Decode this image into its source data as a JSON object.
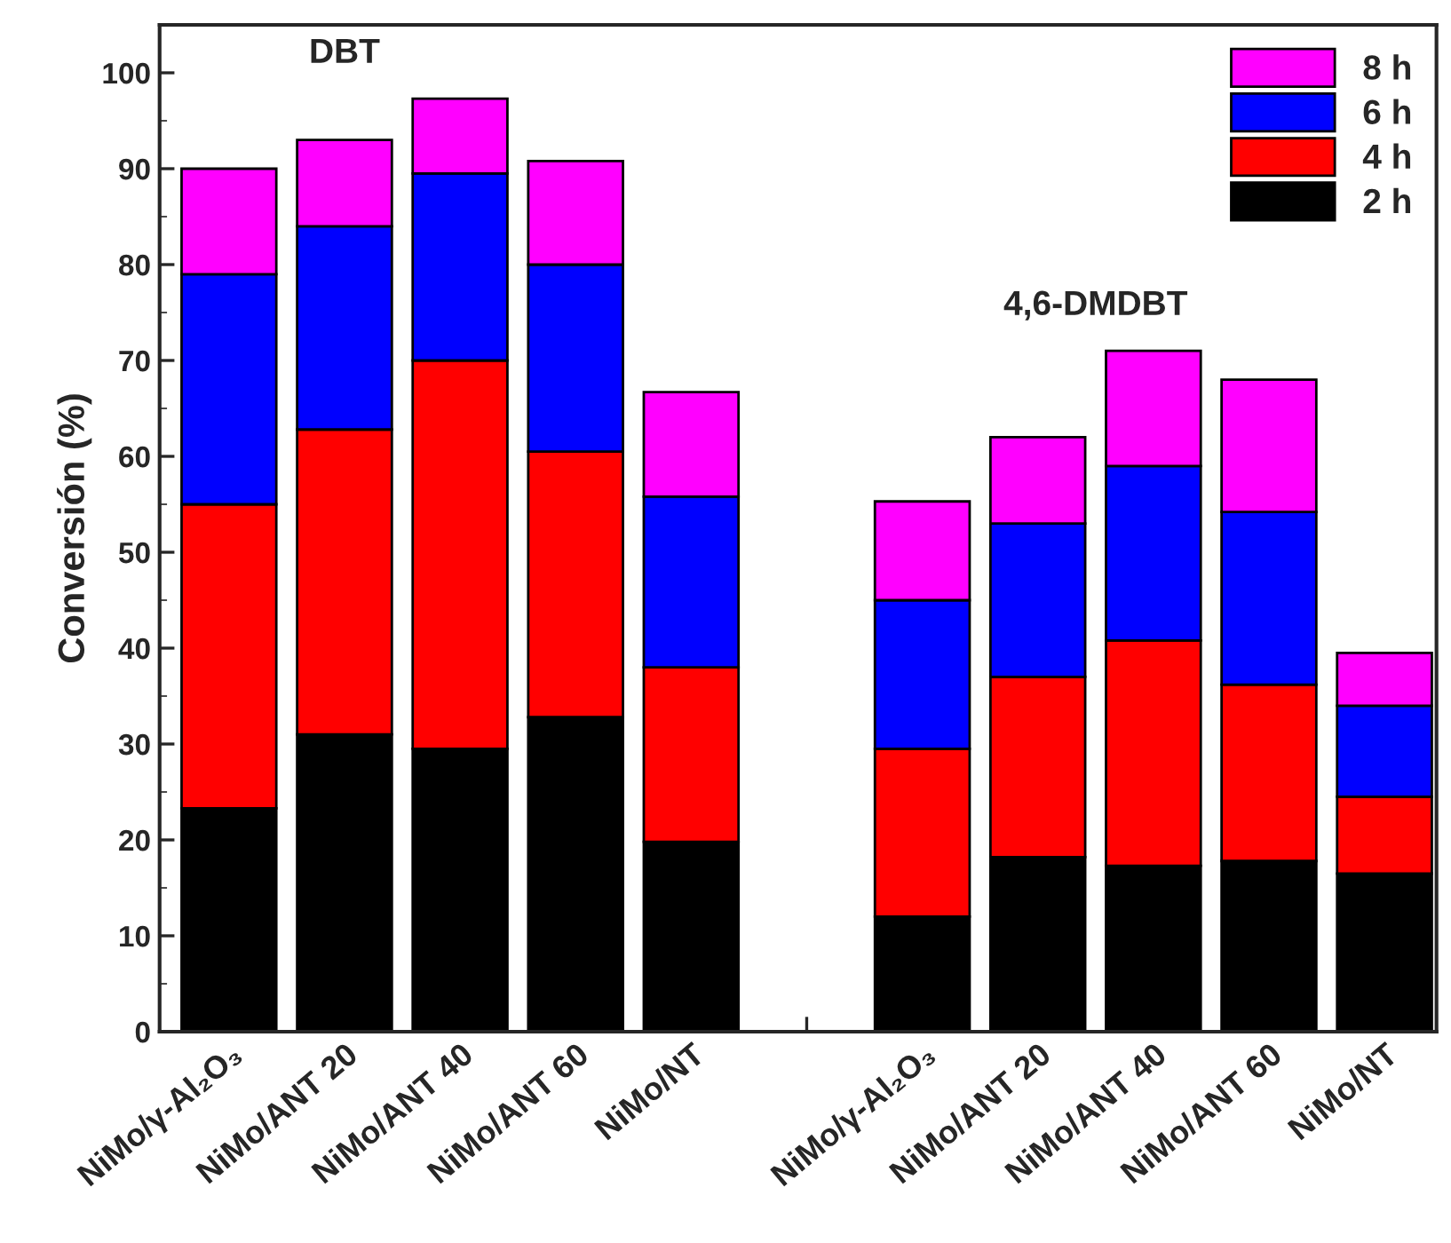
{
  "chart_data": {
    "type": "bar",
    "stacked": true,
    "ylabel": "Conversión (%)",
    "categories": [
      "NiMo/γ-Al₂O₃",
      "NiMo/ANT 20",
      "NiMo/ANT 40",
      "NiMo/ANT 60",
      "NiMo/NT",
      null,
      "NiMo/γ-Al₂O₃",
      "NiMo/ANT 20",
      "NiMo/ANT 40",
      "NiMo/ANT 60",
      "NiMo/NT"
    ],
    "series": [
      {
        "name": "2 h",
        "color": "#000000",
        "values": [
          23.3,
          31,
          29.5,
          32.8,
          19.8,
          null,
          12,
          18.2,
          17.3,
          17.8,
          16.5
        ]
      },
      {
        "name": "4 h",
        "color": "#ff0000",
        "values": [
          31.7,
          31.8,
          40.5,
          27.7,
          18.2,
          null,
          17.5,
          18.8,
          23.5,
          18.4,
          8
        ]
      },
      {
        "name": "6 h",
        "color": "#0000ff",
        "values": [
          24,
          21.2,
          19.5,
          19.5,
          17.8,
          null,
          15.5,
          16,
          18.2,
          18,
          9.5
        ]
      },
      {
        "name": "8 h",
        "color": "#ff00ff",
        "values": [
          11,
          9,
          7.8,
          10.8,
          10.9,
          null,
          10.3,
          9,
          12,
          13.8,
          5.5
        ]
      }
    ],
    "annotations": [
      "DBT",
      "4,6-DMDBT"
    ],
    "ylim": [
      0,
      105
    ],
    "yticks": [
      0,
      10,
      20,
      30,
      40,
      50,
      60,
      70,
      80,
      90,
      100
    ],
    "legend": "top right",
    "grid": false
  }
}
